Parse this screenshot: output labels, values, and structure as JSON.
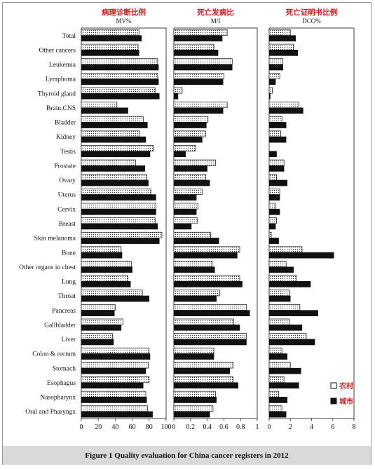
{
  "figure": {
    "caption": "Figure 1    Quality evaluation for China cancer registers in 2012"
  },
  "chart_data": [
    {
      "type": "bar",
      "title": "病理诊断比例",
      "subtitle": "MV%",
      "xlim": [
        0,
        100
      ],
      "ticks": [
        "0",
        "20",
        "40",
        "60",
        "80",
        "100"
      ],
      "categories": [
        "Total",
        "Other cancers",
        "Leukemia",
        "Lymphoma",
        "Thyroid gland",
        "Brain,CNS",
        "Bladder",
        "Kidney",
        "Testis",
        "Prostate",
        "Ovary",
        "Uterus",
        "Cervix",
        "Breast",
        "Skin melanoma",
        "Bone",
        "Other organs in chest",
        "Lung",
        "Throat",
        "Pancreas",
        "Gallbladder",
        "Liver",
        "Colon & rectum",
        "Stomach",
        "Esophagus",
        "Nasopharynx",
        "Oral and Pharyngx"
      ],
      "series": [
        {
          "name": "农村",
          "values": [
            68,
            67,
            90,
            90,
            87,
            42,
            73,
            69,
            85,
            64,
            77,
            82,
            88,
            87,
            95,
            47,
            59,
            55,
            72,
            40,
            49,
            37,
            80,
            79,
            80,
            76,
            78
          ]
        },
        {
          "name": "城市",
          "values": [
            71,
            68,
            91,
            91,
            92,
            55,
            78,
            76,
            81,
            75,
            79,
            88,
            88,
            90,
            92,
            48,
            60,
            58,
            80,
            39,
            47,
            38,
            81,
            76,
            73,
            77,
            84
          ]
        }
      ]
    },
    {
      "type": "bar",
      "title": "死亡发病比",
      "subtitle": "M/I",
      "xlim": [
        0,
        1
      ],
      "ticks": [
        "0",
        "0.2",
        "0.4",
        "0.6",
        "0.8",
        "1"
      ],
      "categories": [
        "Total",
        "Other cancers",
        "Leukemia",
        "Lymphoma",
        "Thyroid gland",
        "Brain,CNS",
        "Bladder",
        "Kidney",
        "Testis",
        "Prostate",
        "Ovary",
        "Uterus",
        "Cervix",
        "Breast",
        "Skin melanoma",
        "Bone",
        "Other organs in chest",
        "Lung",
        "Throat",
        "Pancreas",
        "Gallbladder",
        "Liver",
        "Colon & rectum",
        "Stomach",
        "Esophagus",
        "Nasopharynx",
        "Oral and Pharyngx"
      ],
      "series": [
        {
          "name": "农村",
          "values": [
            0.64,
            0.48,
            0.7,
            0.6,
            0.1,
            0.64,
            0.41,
            0.38,
            0.26,
            0.5,
            0.38,
            0.34,
            0.29,
            0.28,
            0.44,
            0.79,
            0.46,
            0.79,
            0.55,
            0.87,
            0.72,
            0.87,
            0.48,
            0.71,
            0.71,
            0.5,
            0.47
          ]
        },
        {
          "name": "城市",
          "values": [
            0.58,
            0.53,
            0.7,
            0.59,
            0.05,
            0.59,
            0.39,
            0.34,
            0.14,
            0.4,
            0.43,
            0.27,
            0.27,
            0.21,
            0.54,
            0.76,
            0.49,
            0.82,
            0.51,
            0.91,
            0.79,
            0.87,
            0.48,
            0.67,
            0.77,
            0.51,
            0.43
          ]
        }
      ]
    },
    {
      "type": "bar",
      "title": "死亡证明书比例",
      "subtitle": "DCO%",
      "xlim": [
        0,
        8
      ],
      "ticks": [
        "0",
        "2",
        "4",
        "6",
        "8"
      ],
      "categories": [
        "Total",
        "Other cancers",
        "Leukemia",
        "Lymphoma",
        "Thyroid gland",
        "Brain,CNS",
        "Bladder",
        "Kidney",
        "Testis",
        "Prostate",
        "Ovary",
        "Uterus",
        "Cervix",
        "Breast",
        "Skin melanoma",
        "Bone",
        "Other organs in chest",
        "Lung",
        "Throat",
        "Pancreas",
        "Gallbladder",
        "Liver",
        "Colon & rectum",
        "Stomach",
        "Esophagus",
        "Nasopharynx",
        "Oral and Pharyngx"
      ],
      "series": [
        {
          "name": "农村",
          "values": [
            2.0,
            2.3,
            1.3,
            1.0,
            0.3,
            2.8,
            1.2,
            1.1,
            0.0,
            1.4,
            0.7,
            1.0,
            0.6,
            0.7,
            0.2,
            3.1,
            1.6,
            2.6,
            1.9,
            2.9,
            1.9,
            3.5,
            1.2,
            2.0,
            1.4,
            0.9,
            1.2
          ]
        },
        {
          "name": "城市",
          "values": [
            2.5,
            2.7,
            1.3,
            0.6,
            0.1,
            3.2,
            1.6,
            1.6,
            0.7,
            1.4,
            1.7,
            1.0,
            1.0,
            0.6,
            0.9,
            6.1,
            2.3,
            3.9,
            2.0,
            4.6,
            3.1,
            4.3,
            1.7,
            3.0,
            2.8,
            1.7,
            1.6
          ]
        }
      ]
    }
  ],
  "legend": {
    "placement": "bottom-right",
    "items": [
      {
        "label": "农村",
        "style": "dotted"
      },
      {
        "label": "城市",
        "style": "solid"
      }
    ]
  },
  "colors": {
    "title": "#e0161b",
    "bar_solid": "#111111",
    "bar_outline": "#111111"
  }
}
